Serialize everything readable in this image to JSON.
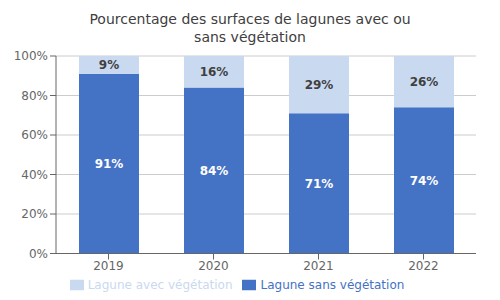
{
  "chart_data": {
    "type": "bar",
    "title": "Pourcentage des surfaces de lagunes avec ou\nsans végétation",
    "categories": [
      "2019",
      "2020",
      "2021",
      "2022"
    ],
    "series": [
      {
        "name": "Lagune sans végétation",
        "color": "#4472C4",
        "values": [
          91,
          84,
          71,
          74
        ],
        "value_labels": [
          "91%",
          "84%",
          "71%",
          "74%"
        ]
      },
      {
        "name": "Lagune avec végétation",
        "color": "#C9D9F0",
        "values": [
          9,
          16,
          29,
          26
        ],
        "value_labels": [
          "9%",
          "16%",
          "29%",
          "26%"
        ]
      }
    ],
    "stacked": true,
    "data_labels": true,
    "ylim": [
      0,
      100
    ],
    "yticks": [
      {
        "value": 0,
        "label": "0%"
      },
      {
        "value": 20,
        "label": "20%"
      },
      {
        "value": 40,
        "label": "40%"
      },
      {
        "value": 60,
        "label": "60%"
      },
      {
        "value": 80,
        "label": "80%"
      },
      {
        "value": 100,
        "label": "100%"
      }
    ],
    "grid": true,
    "legend": "bottom"
  }
}
